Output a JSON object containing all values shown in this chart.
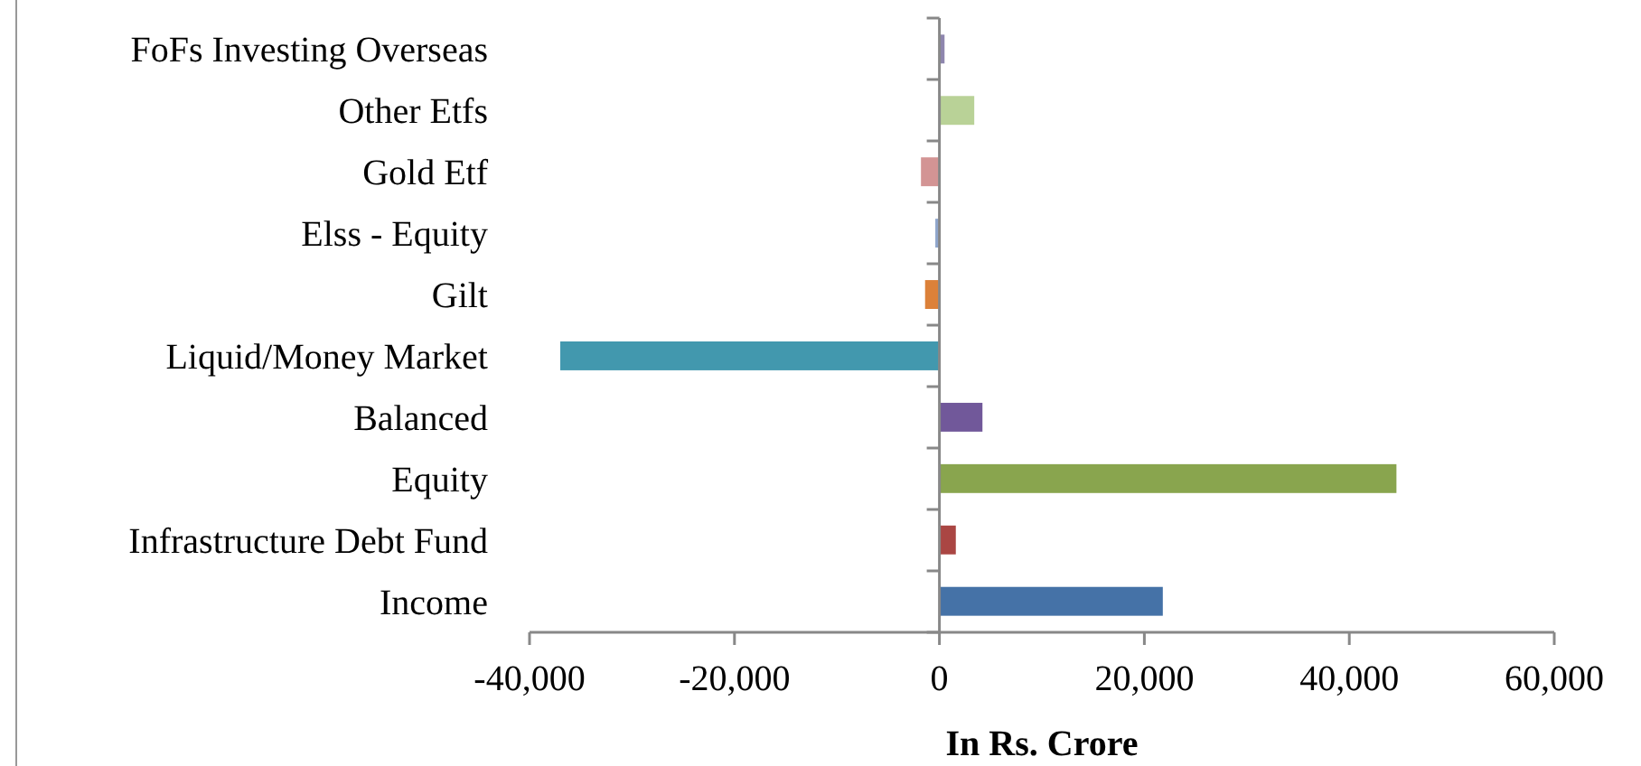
{
  "chart_data": {
    "type": "bar",
    "orientation": "horizontal",
    "xlabel": "In Rs. Crore",
    "categories": [
      "FoFs Investing Overseas",
      "Other Etfs",
      "Gold Etf",
      "Elss - Equity",
      "Gilt",
      "Liquid/Money Market",
      "Balanced",
      "Equity",
      "Infrastructure Debt Fund",
      "Income"
    ],
    "values": [
      500,
      3400,
      -1800,
      -400,
      -1400,
      -37000,
      4200,
      44600,
      1600,
      21800
    ],
    "colors": [
      "#8e86ae",
      "#b9d297",
      "#d39494",
      "#8ea5cb",
      "#dc8139",
      "#4298ae",
      "#71589a",
      "#89a54e",
      "#aa4643",
      "#4572a7"
    ],
    "xlim": [
      -40000,
      60000
    ],
    "xticks": [
      {
        "value": -40000,
        "label": "-40,000"
      },
      {
        "value": -20000,
        "label": "-20,000"
      },
      0,
      {
        "value": 20000,
        "label": "20,000"
      },
      {
        "value": 40000,
        "label": "40,000"
      },
      {
        "value": 60000,
        "label": "60,000"
      }
    ],
    "legend": false
  }
}
